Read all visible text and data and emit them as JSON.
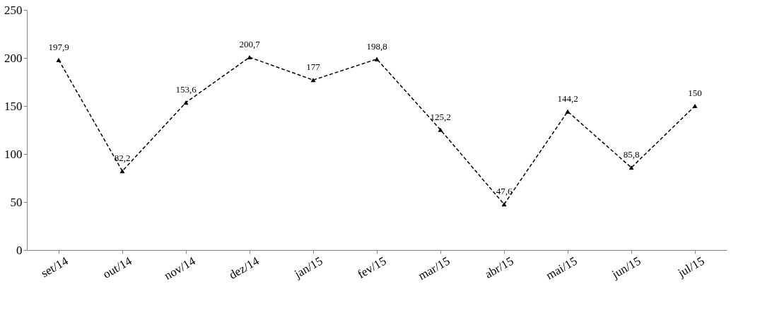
{
  "chart_data": {
    "type": "line",
    "categories": [
      "set/14",
      "out/14",
      "nov/14",
      "dez/14",
      "jan/15",
      "fev/15",
      "mar/15",
      "abr/15",
      "mai/15",
      "jun/15",
      "jul/15"
    ],
    "series": [
      {
        "color": "#000000",
        "values": [
          197.9,
          82.2,
          153.6,
          200.7,
          177,
          198.8,
          125.2,
          47.6,
          144.2,
          85.8,
          150
        ],
        "value_labels": [
          "197,9",
          "82,2",
          "153,6",
          "200,7",
          "177",
          "198,8",
          "125,2",
          "47,6",
          "144,2",
          "85,8",
          "150"
        ]
      }
    ],
    "ylim": [
      0,
      250
    ],
    "yticks": [
      0,
      50,
      100,
      150,
      200,
      250
    ],
    "grid": false,
    "legend": false,
    "marker": "triangle",
    "line_style": "dashed"
  }
}
